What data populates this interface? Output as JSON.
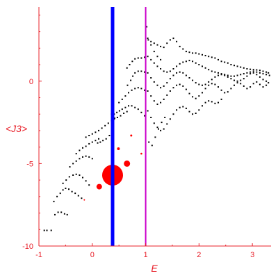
{
  "chart_data": {
    "type": "scatter",
    "xlabel": "E",
    "ylabel": "<J3>",
    "xlim": [
      -1,
      3.35
    ],
    "ylim": [
      -10,
      4.5
    ],
    "x_ticks": [
      -1,
      0,
      1,
      2,
      3
    ],
    "x_tick_labels": [
      "-1",
      "0",
      "1",
      "2",
      "3"
    ],
    "y_ticks": [
      0,
      -5,
      -10
    ],
    "y_tick_labels": [
      "0",
      "-5",
      "-10"
    ],
    "colors": {
      "axis": "#e8202a",
      "ticks": "#e8202a",
      "points": "#000000",
      "highlight": "#ff0000",
      "line_blue": "#0000ff",
      "line_magenta": "#cc00cc"
    },
    "vertical_lines": [
      {
        "x": 0.38,
        "color": "#0000ff",
        "width": "thick"
      },
      {
        "x": 1.0,
        "color": "#cc00cc",
        "width": "thin"
      }
    ],
    "highlighted_points": [
      {
        "x": 0.38,
        "y": -5.7,
        "size": 15
      },
      {
        "x": 0.13,
        "y": -6.4,
        "size": 4
      },
      {
        "x": 0.65,
        "y": -5.0,
        "size": 4.5
      },
      {
        "x": 0.49,
        "y": -4.1,
        "size": 2
      },
      {
        "x": 0.73,
        "y": -3.3,
        "size": 1.5
      },
      {
        "x": 0.92,
        "y": -4.4,
        "size": 1.3
      },
      {
        "x": -0.15,
        "y": -7.2,
        "size": 1
      }
    ],
    "series": [
      {
        "points": [
          [
            -0.9,
            -9.05
          ],
          [
            -0.85,
            -9.05
          ],
          [
            -0.77,
            -9.05
          ],
          [
            -0.7,
            -8.1
          ],
          [
            -0.64,
            -7.95
          ],
          [
            -0.58,
            -7.95
          ],
          [
            -0.52,
            -8.05
          ],
          [
            -0.47,
            -8.1
          ],
          [
            -0.72,
            -7.3
          ],
          [
            -0.66,
            -7.0
          ],
          [
            -0.6,
            -6.8
          ],
          [
            -0.55,
            -6.6
          ],
          [
            -0.5,
            -6.5
          ],
          [
            -0.44,
            -6.55
          ],
          [
            -0.38,
            -6.7
          ],
          [
            -0.32,
            -6.8
          ],
          [
            -0.26,
            -6.95
          ],
          [
            -0.2,
            -7.1
          ],
          [
            -0.55,
            -6.2
          ],
          [
            -0.49,
            -6.0
          ],
          [
            -0.43,
            -5.8
          ],
          [
            -0.36,
            -5.7
          ],
          [
            -0.3,
            -5.65
          ],
          [
            -0.24,
            -5.7
          ],
          [
            -0.18,
            -5.85
          ],
          [
            -0.12,
            -6.05
          ],
          [
            -0.06,
            -6.3
          ],
          [
            -0.42,
            -5.2
          ],
          [
            -0.36,
            -5.0
          ],
          [
            -0.3,
            -4.85
          ],
          [
            -0.24,
            -4.7
          ],
          [
            -0.18,
            -4.6
          ],
          [
            -0.12,
            -4.55
          ],
          [
            -0.06,
            -4.6
          ],
          [
            0.0,
            -4.7
          ],
          [
            -0.3,
            -4.4
          ],
          [
            -0.24,
            -4.2
          ],
          [
            -0.18,
            -4.05
          ],
          [
            -0.12,
            -3.95
          ],
          [
            -0.06,
            -3.8
          ],
          [
            0.0,
            -3.7
          ],
          [
            0.06,
            -3.6
          ],
          [
            0.12,
            -3.5
          ],
          [
            -0.12,
            -3.4
          ],
          [
            -0.06,
            -3.3
          ],
          [
            0.0,
            -3.2
          ],
          [
            0.06,
            -3.1
          ],
          [
            0.12,
            -3.0
          ],
          [
            0.18,
            -2.85
          ],
          [
            0.24,
            -2.7
          ],
          [
            0.3,
            -2.55
          ],
          [
            0.36,
            -2.4
          ],
          [
            0.42,
            -2.25
          ],
          [
            0.1,
            -3.75
          ],
          [
            0.15,
            -3.7
          ],
          [
            0.2,
            -3.6
          ],
          [
            0.26,
            -3.5
          ],
          [
            0.32,
            -3.3
          ],
          [
            0.36,
            -2.0
          ],
          [
            0.41,
            -2.0
          ],
          [
            0.46,
            -1.9
          ],
          [
            0.51,
            -1.8
          ],
          [
            0.56,
            -1.7
          ],
          [
            0.62,
            -1.6
          ],
          [
            0.68,
            -1.5
          ],
          [
            0.74,
            -1.5
          ],
          [
            0.8,
            -1.6
          ],
          [
            0.86,
            -1.7
          ],
          [
            0.92,
            -1.9
          ],
          [
            0.98,
            -2.1
          ],
          [
            0.41,
            -2.3
          ],
          [
            0.47,
            -2.2
          ],
          [
            0.53,
            -2.1
          ],
          [
            0.59,
            -1.95
          ],
          [
            0.65,
            -1.85
          ],
          [
            0.5,
            -1.3
          ],
          [
            0.56,
            -1.1
          ],
          [
            0.62,
            -0.9
          ],
          [
            0.68,
            -0.7
          ],
          [
            0.74,
            -0.55
          ],
          [
            0.8,
            -0.45
          ],
          [
            0.86,
            -0.4
          ],
          [
            0.92,
            -0.45
          ],
          [
            0.98,
            -0.55
          ],
          [
            0.66,
            -0.25
          ],
          [
            0.72,
            0.05
          ],
          [
            0.76,
            0.3
          ],
          [
            0.8,
            0.5
          ],
          [
            0.86,
            0.6
          ],
          [
            0.92,
            0.6
          ],
          [
            0.98,
            0.55
          ],
          [
            0.65,
            0.8
          ],
          [
            0.7,
            1.0
          ],
          [
            0.75,
            1.2
          ],
          [
            0.8,
            1.35
          ],
          [
            0.86,
            1.4
          ],
          [
            0.92,
            1.4
          ],
          [
            0.98,
            1.45
          ],
          [
            1.02,
            3.3
          ],
          [
            1.05,
            2.5
          ],
          [
            1.1,
            2.2
          ],
          [
            1.16,
            1.8
          ],
          [
            1.22,
            1.5
          ],
          [
            1.28,
            1.3
          ],
          [
            1.04,
            2.6
          ],
          [
            1.1,
            2.4
          ],
          [
            1.16,
            2.3
          ],
          [
            1.22,
            2.2
          ],
          [
            1.28,
            2.1
          ],
          [
            1.34,
            2.05
          ],
          [
            1.4,
            2.3
          ],
          [
            1.46,
            2.5
          ],
          [
            1.52,
            2.6
          ],
          [
            1.58,
            2.4
          ],
          [
            1.64,
            2.1
          ],
          [
            1.7,
            1.95
          ],
          [
            1.76,
            1.8
          ],
          [
            1.82,
            1.75
          ],
          [
            1.88,
            1.7
          ],
          [
            1.94,
            1.7
          ],
          [
            2.0,
            1.65
          ],
          [
            2.06,
            1.6
          ],
          [
            2.12,
            1.55
          ],
          [
            2.18,
            1.5
          ],
          [
            2.24,
            1.45
          ],
          [
            2.3,
            1.4
          ],
          [
            2.36,
            1.3
          ],
          [
            2.42,
            1.2
          ],
          [
            2.48,
            1.15
          ],
          [
            2.54,
            1.1
          ],
          [
            2.6,
            1.0
          ],
          [
            2.66,
            0.95
          ],
          [
            2.72,
            0.9
          ],
          [
            2.78,
            0.85
          ],
          [
            2.84,
            0.8
          ],
          [
            2.9,
            0.75
          ],
          [
            2.96,
            0.72
          ],
          [
            3.02,
            0.7
          ],
          [
            3.08,
            0.68
          ],
          [
            3.14,
            0.65
          ],
          [
            3.2,
            0.6
          ],
          [
            3.26,
            0.55
          ],
          [
            3.3,
            0.5
          ],
          [
            1.04,
            1.5
          ],
          [
            1.1,
            1.3
          ],
          [
            1.16,
            1.1
          ],
          [
            1.22,
            0.9
          ],
          [
            1.28,
            0.75
          ],
          [
            1.34,
            0.6
          ],
          [
            1.4,
            0.55
          ],
          [
            1.46,
            0.6
          ],
          [
            1.52,
            0.75
          ],
          [
            1.58,
            0.9
          ],
          [
            1.64,
            1.05
          ],
          [
            1.7,
            1.15
          ],
          [
            1.76,
            1.2
          ],
          [
            1.82,
            1.25
          ],
          [
            1.88,
            1.2
          ],
          [
            1.94,
            1.1
          ],
          [
            2.0,
            1.0
          ],
          [
            2.06,
            0.9
          ],
          [
            2.12,
            0.8
          ],
          [
            2.18,
            0.7
          ],
          [
            2.24,
            0.6
          ],
          [
            2.3,
            0.55
          ],
          [
            2.36,
            0.5
          ],
          [
            2.42,
            0.45
          ],
          [
            2.48,
            0.4
          ],
          [
            2.54,
            0.35
          ],
          [
            2.6,
            0.3
          ],
          [
            2.66,
            0.3
          ],
          [
            2.72,
            0.35
          ],
          [
            2.78,
            0.4
          ],
          [
            2.84,
            0.45
          ],
          [
            2.9,
            0.5
          ],
          [
            2.96,
            0.55
          ],
          [
            3.02,
            0.6
          ],
          [
            3.08,
            0.55
          ],
          [
            3.14,
            0.5
          ],
          [
            3.2,
            0.45
          ],
          [
            3.26,
            0.4
          ],
          [
            3.32,
            0.35
          ],
          [
            1.04,
            0.5
          ],
          [
            1.1,
            0.2
          ],
          [
            1.16,
            -0.05
          ],
          [
            1.22,
            -0.25
          ],
          [
            1.28,
            -0.4
          ],
          [
            1.34,
            -0.3
          ],
          [
            1.4,
            -0.1
          ],
          [
            1.46,
            0.15
          ],
          [
            1.52,
            0.35
          ],
          [
            1.58,
            0.5
          ],
          [
            1.64,
            0.55
          ],
          [
            1.7,
            0.5
          ],
          [
            1.76,
            0.35
          ],
          [
            1.82,
            0.2
          ],
          [
            1.88,
            0.05
          ],
          [
            1.94,
            -0.1
          ],
          [
            2.0,
            -0.2
          ],
          [
            2.06,
            -0.25
          ],
          [
            2.12,
            -0.2
          ],
          [
            2.18,
            -0.05
          ],
          [
            2.24,
            0.1
          ],
          [
            2.3,
            0.25
          ],
          [
            2.36,
            0.35
          ],
          [
            2.42,
            0.4
          ],
          [
            2.48,
            0.35
          ],
          [
            2.54,
            0.25
          ],
          [
            2.6,
            0.15
          ],
          [
            2.66,
            0.05
          ],
          [
            2.72,
            0.0
          ],
          [
            2.78,
            0.05
          ],
          [
            2.84,
            0.15
          ],
          [
            2.9,
            0.3
          ],
          [
            2.96,
            0.45
          ],
          [
            3.02,
            0.5
          ],
          [
            3.08,
            0.4
          ],
          [
            3.14,
            0.25
          ],
          [
            3.2,
            0.1
          ],
          [
            3.26,
            0.0
          ],
          [
            3.3,
            -0.1
          ],
          [
            1.04,
            -0.6
          ],
          [
            1.1,
            -0.9
          ],
          [
            1.16,
            -1.2
          ],
          [
            1.22,
            -1.4
          ],
          [
            1.28,
            -1.3
          ],
          [
            1.34,
            -1.1
          ],
          [
            1.4,
            -0.85
          ],
          [
            1.46,
            -0.6
          ],
          [
            1.52,
            -0.4
          ],
          [
            1.58,
            -0.25
          ],
          [
            1.64,
            -0.2
          ],
          [
            1.7,
            -0.3
          ],
          [
            1.76,
            -0.5
          ],
          [
            1.82,
            -0.75
          ],
          [
            1.88,
            -0.95
          ],
          [
            1.94,
            -1.05
          ],
          [
            2.0,
            -0.9
          ],
          [
            2.06,
            -0.7
          ],
          [
            2.12,
            -0.45
          ],
          [
            2.18,
            -0.25
          ],
          [
            2.24,
            -0.15
          ],
          [
            2.3,
            -0.2
          ],
          [
            2.36,
            -0.35
          ],
          [
            2.42,
            -0.55
          ],
          [
            2.48,
            -0.7
          ],
          [
            2.54,
            -0.65
          ],
          [
            2.6,
            -0.45
          ],
          [
            2.66,
            -0.25
          ],
          [
            2.72,
            -0.1
          ],
          [
            2.78,
            -0.15
          ],
          [
            2.84,
            -0.3
          ],
          [
            2.9,
            -0.45
          ],
          [
            2.96,
            -0.35
          ],
          [
            3.02,
            -0.15
          ],
          [
            3.08,
            -0.05
          ],
          [
            3.14,
            -0.2
          ],
          [
            3.2,
            -0.35
          ],
          [
            3.26,
            -0.25
          ],
          [
            1.04,
            -1.8
          ],
          [
            1.1,
            -2.2
          ],
          [
            1.16,
            -2.55
          ],
          [
            1.22,
            -2.8
          ],
          [
            1.28,
            -3.0
          ],
          [
            1.34,
            -2.9
          ],
          [
            1.4,
            -2.6
          ],
          [
            1.46,
            -2.3
          ],
          [
            1.52,
            -2.0
          ],
          [
            1.58,
            -1.75
          ],
          [
            1.64,
            -1.6
          ],
          [
            1.7,
            -1.55
          ],
          [
            1.76,
            -1.65
          ],
          [
            1.82,
            -1.85
          ],
          [
            1.88,
            -2.0
          ],
          [
            1.94,
            -1.95
          ],
          [
            2.0,
            -1.75
          ],
          [
            2.06,
            -1.5
          ],
          [
            2.12,
            -1.3
          ],
          [
            2.18,
            -1.2
          ],
          [
            2.24,
            -1.25
          ],
          [
            2.3,
            -1.35
          ],
          [
            2.36,
            -1.3
          ],
          [
            2.42,
            -1.1
          ],
          [
            1.06,
            -3.7
          ],
          [
            1.12,
            -3.9
          ],
          [
            1.18,
            -3.4
          ],
          [
            1.24,
            -2.9
          ],
          [
            1.3,
            -2.5
          ],
          [
            1.36,
            -2.2
          ]
        ]
      }
    ]
  }
}
